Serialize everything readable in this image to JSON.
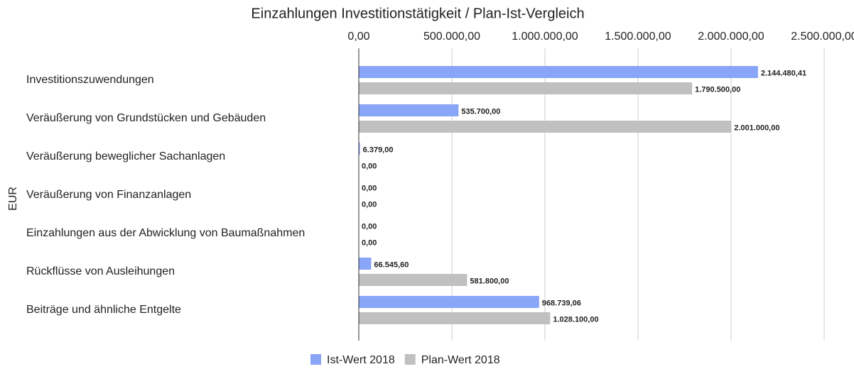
{
  "chart_data": {
    "type": "bar",
    "orientation": "horizontal",
    "title": "Einzahlungen Investitionstätigkeit / Plan-Ist-Vergleich",
    "y_label": "EUR",
    "categories": [
      "Investitionszuwendungen",
      "Veräußerung von Grundstücken und Gebäuden",
      "Veräußerung beweglicher Sachanlagen",
      "Veräußerung von Finanzanlagen",
      "Einzahlungen aus der Abwicklung von Baumaßnahmen",
      "Rückflüsse von Ausleihungen",
      "Beiträge und ähnliche Entgelte"
    ],
    "series": [
      {
        "name": "Ist-Wert 2018",
        "color": "#89a5f7",
        "values": [
          2144480.41,
          535700,
          6379,
          0,
          0,
          66545.6,
          968739.06
        ],
        "value_labels": [
          "2.144.480,41",
          "535.700,00",
          "6.379,00",
          "0,00",
          "0,00",
          "66.545,60",
          "968.739,06"
        ]
      },
      {
        "name": "Plan-Wert 2018",
        "color": "#c0c0c0",
        "values": [
          1790500,
          2001000,
          0,
          0,
          0,
          581800,
          1028100
        ],
        "value_labels": [
          "1.790.500,00",
          "2.001.000,00",
          "0,00",
          "0,00",
          "0,00",
          "581.800,00",
          "1.028.100,00"
        ]
      }
    ],
    "xlim": [
      0,
      2500000
    ],
    "xticks": [
      {
        "value": 0,
        "label": "0,00"
      },
      {
        "value": 500000,
        "label": "500.000,00"
      },
      {
        "value": 1000000,
        "label": "1.000.000,00"
      },
      {
        "value": 1500000,
        "label": "1.500.000,00"
      },
      {
        "value": 2000000,
        "label": "2.000.000,00"
      },
      {
        "value": 2500000,
        "label": "2.500.000,00"
      }
    ],
    "grid": true,
    "legend": "bottom"
  }
}
